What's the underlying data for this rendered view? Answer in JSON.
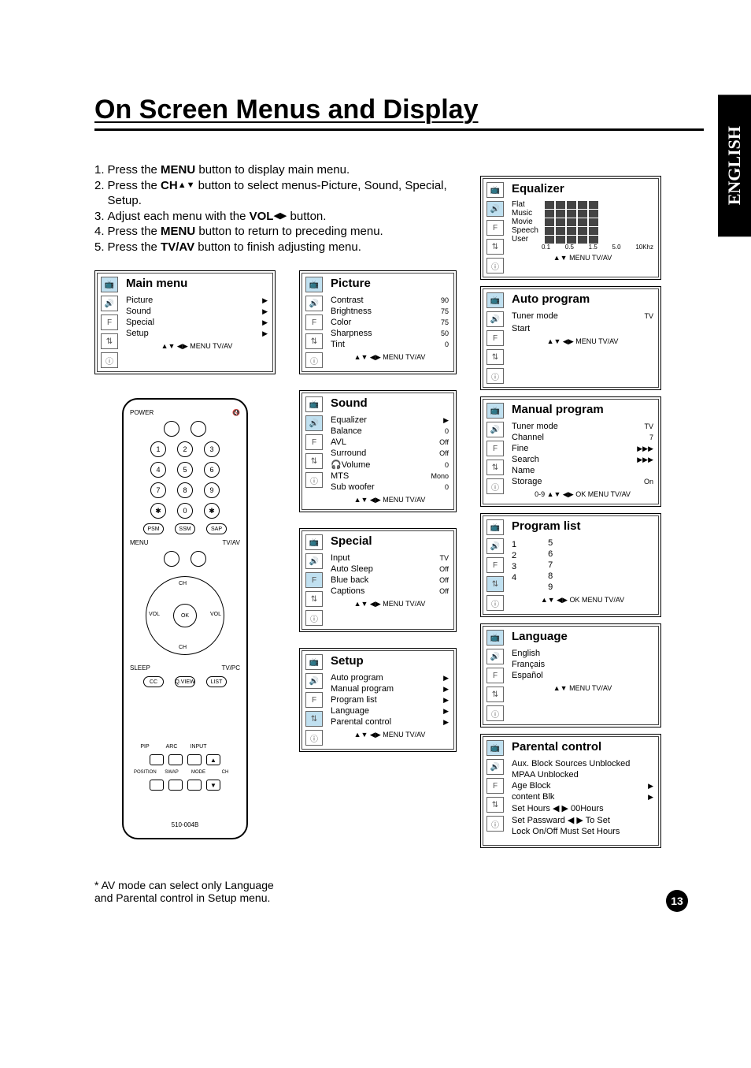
{
  "lang_tab": "ENGLISH",
  "page_number": "13",
  "title": "On Screen Menus and Display",
  "instructions": [
    {
      "num": "1.",
      "text_before": "Press the ",
      "bold": "MENU",
      "text_after": " button to display main menu."
    },
    {
      "num": "2.",
      "text_before": "Press the ",
      "bold": "CH",
      "arrows": "▲▼",
      "text_after": " button to select menus-Picture, Sound, Special, Setup."
    },
    {
      "num": "3.",
      "text_before": "Adjust each menu with the ",
      "bold": "VOL",
      "arrows": "◀▶",
      "text_after": " button."
    },
    {
      "num": "4.",
      "text_before": "Press the ",
      "bold": "MENU",
      "text_after": " button to return to preceding menu."
    },
    {
      "num": "5.",
      "text_before": "Press the ",
      "bold": "TV/AV",
      "text_after": " button to finish adjusting menu."
    }
  ],
  "main_menu": {
    "title": "Main menu",
    "items": [
      {
        "label": "Picture",
        "arrow": "▶"
      },
      {
        "label": "Sound",
        "arrow": "▶"
      },
      {
        "label": "Special",
        "arrow": "▶"
      },
      {
        "label": "Setup",
        "arrow": "▶"
      }
    ],
    "footer": "▲▼  ◀▶  MENU TV/AV"
  },
  "picture": {
    "title": "Picture",
    "items": [
      {
        "label": "Contrast",
        "value": "90"
      },
      {
        "label": "Brightness",
        "value": "75"
      },
      {
        "label": "Color",
        "value": "75"
      },
      {
        "label": "Sharpness",
        "value": "50"
      },
      {
        "label": "Tint",
        "value": "0"
      }
    ],
    "footer": "▲▼  ◀▶   MENU   TV/AV"
  },
  "sound": {
    "title": "Sound",
    "items": [
      {
        "label": "Equalizer",
        "value": "▶"
      },
      {
        "label": "Balance",
        "value": "0"
      },
      {
        "label": "AVL",
        "value": "Off"
      },
      {
        "label": "Surround",
        "value": "Off"
      },
      {
        "label": "🎧Volume",
        "value": "0"
      },
      {
        "label": "MTS",
        "value": "Mono"
      },
      {
        "label": "Sub woofer",
        "value": "0"
      }
    ],
    "footer": "▲▼  ◀▶   MENU TV/AV"
  },
  "special": {
    "title": "Special",
    "items": [
      {
        "label": "Input",
        "value": "TV"
      },
      {
        "label": "Auto Sleep",
        "value": "Off"
      },
      {
        "label": "Blue back",
        "value": "Off"
      },
      {
        "label": "Captions",
        "value": "Off"
      }
    ],
    "footer": "▲▼  ◀▶   MENU  TV/AV"
  },
  "setup": {
    "title": "Setup",
    "items": [
      {
        "label": "Auto program",
        "value": "▶"
      },
      {
        "label": "Manual program",
        "value": "▶"
      },
      {
        "label": "Program list",
        "value": "▶"
      },
      {
        "label": "Language",
        "value": "▶"
      },
      {
        "label": "Parental control",
        "value": "▶"
      }
    ],
    "footer": "▲▼  ◀▶ MENU TV/AV"
  },
  "equalizer": {
    "title": "Equalizer",
    "rows": [
      "Flat",
      "Music",
      "Movie",
      "Speech",
      "User"
    ],
    "axis": [
      "0.1",
      "0.5",
      "1.5",
      "5.0",
      "10Khz"
    ],
    "footer": "▲▼            MENU TV/AV"
  },
  "auto_program": {
    "title": "Auto program",
    "items": [
      {
        "label": "Tuner mode",
        "value": "TV"
      },
      {
        "label": "",
        "value": ""
      },
      {
        "label": "Start",
        "value": ""
      }
    ],
    "footer": "▲▼  ◀▶   MENU   TV/AV"
  },
  "manual_program": {
    "title": "Manual program",
    "items": [
      {
        "label": "Tuner mode",
        "value": "TV"
      },
      {
        "label": "Channel",
        "value": "7"
      },
      {
        "label": "Fine",
        "value": "▶▶▶"
      },
      {
        "label": "Search",
        "value": "▶▶▶"
      },
      {
        "label": "Name",
        "value": ""
      },
      {
        "label": "Storage",
        "value": "On"
      }
    ],
    "footer": "0-9 ▲▼ ◀▶ OK MENU TV/AV"
  },
  "program_list": {
    "title": "Program list",
    "cols": [
      [
        "",
        "1",
        "2",
        "3",
        "4"
      ],
      [
        "5",
        "6",
        "7",
        "8",
        "9"
      ]
    ],
    "footer": "▲▼  ◀▶ OK MENU TV/AV"
  },
  "language": {
    "title": "Language",
    "items": [
      {
        "label": "English",
        "value": ""
      },
      {
        "label": "Français",
        "value": ""
      },
      {
        "label": "Español",
        "value": ""
      }
    ],
    "footer": "▲▼        MENU   TV/AV"
  },
  "parental": {
    "title": "Parental control",
    "items": [
      {
        "label": "Aux. Block Sources Unblocked",
        "value": ""
      },
      {
        "label": "MPAA Unblocked",
        "value": ""
      },
      {
        "label": "Age Block",
        "value": "▶"
      },
      {
        "label": "content  Blk",
        "value": "▶"
      },
      {
        "label": "Set Hours    ◀ ▶   00Hours",
        "value": ""
      },
      {
        "label": "Set Passward ◀ ▶    To Set",
        "value": ""
      },
      {
        "label": "Lock On/Off Must Set Hours",
        "value": ""
      }
    ],
    "footer": ""
  },
  "remote": {
    "power": "POWER",
    "digits": [
      [
        "1",
        "2",
        "3"
      ],
      [
        "4",
        "5",
        "6"
      ],
      [
        "7",
        "8",
        "9"
      ],
      [
        "✱",
        "0",
        "✱"
      ]
    ],
    "pills1": [
      "PSM",
      "SSM",
      "SAP"
    ],
    "side_labels": {
      "left": "MENU",
      "right": "TV/AV"
    },
    "dpad": {
      "up": "CH",
      "down": "CH",
      "left": "VOL",
      "right": "VOL",
      "ok": "OK"
    },
    "side2": {
      "left": "SLEEP",
      "right": "TV/PC"
    },
    "under": [
      "CC",
      "Q.VIEW",
      "LIST"
    ],
    "bottom_labels1": [
      "PIP",
      "ARC",
      "INPUT",
      ""
    ],
    "bottom_labels2": [
      "POSITION",
      "SWAP",
      "MODE",
      "CH"
    ],
    "model": "510-004B"
  },
  "footnote": "* AV mode can select only Language and Parental control in Setup menu.",
  "icon_glyphs": [
    "📺",
    "🔊",
    "F",
    "⇅",
    "ⓘ"
  ]
}
